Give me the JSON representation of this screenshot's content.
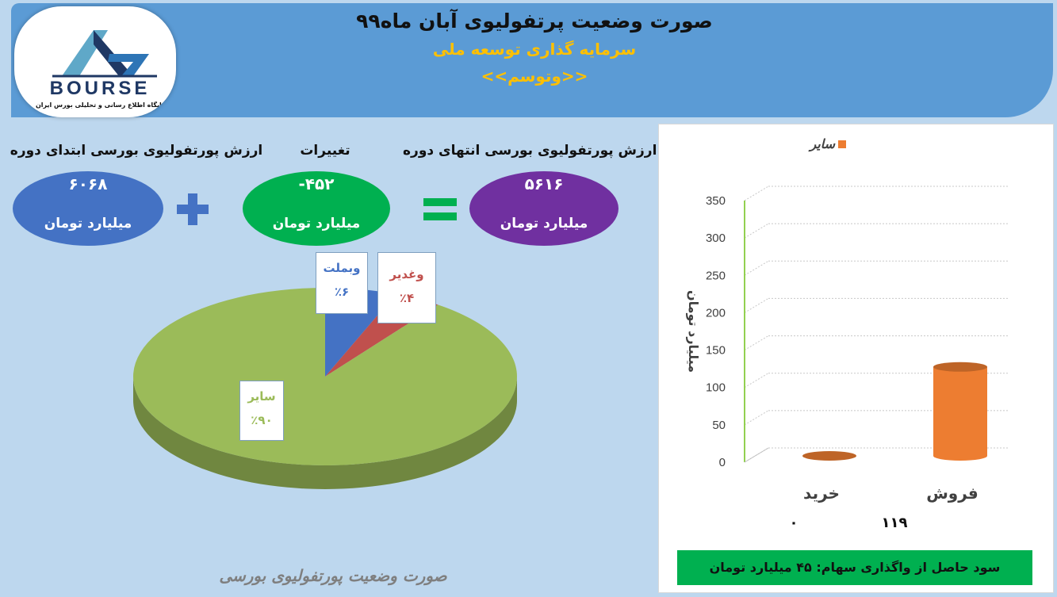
{
  "header": {
    "title": "صورت وضعیت پرتفولیوی آبان ماه۹۹",
    "subtitle": "سرمایه گذاری توسعه ملی",
    "ticker": "<<وتوسم>>"
  },
  "logo": {
    "word": "BOURSE",
    "tagline": "پایگاه اطلاع رسانی و تحلیلی بورس ایران"
  },
  "summary": {
    "start_label": "ارزش پورتفولیوی بورسی ابتدای دوره",
    "start_value": "۶۰۶۸",
    "change_label": "تغییرات",
    "change_value": "-۴۵۲",
    "end_label": "ارزش پورتفولیوی بورسی انتهای دوره",
    "end_value": "۵۶۱۶",
    "unit": "میلیارد تومان",
    "colors": {
      "start": "#4472c4",
      "change": "#00b050",
      "end": "#7030a0",
      "operator": "#4472c4",
      "equals": "#00b050"
    }
  },
  "pie": {
    "slices": [
      {
        "name": "وبملت",
        "percent_label": "٪۶",
        "value": 6,
        "color": "#4472c4"
      },
      {
        "name": "وغدیر",
        "percent_label": "٪۴",
        "value": 4,
        "color": "#c0504d"
      },
      {
        "name": "سایر",
        "percent_label": "٪۹۰",
        "value": 90,
        "color": "#9bbb59"
      }
    ],
    "caption": "صورت وضعیت پورتفولیوی بورسی"
  },
  "chart_data": {
    "type": "bar",
    "categories": [
      "خرید",
      "فروش"
    ],
    "series": [
      {
        "name": "سایر",
        "values": [
          0,
          119
        ],
        "color": "#ed7d31"
      }
    ],
    "value_labels": [
      "۰",
      "۱۱۹"
    ],
    "ylabel": "میلیارد تومان",
    "ylim": [
      0,
      350
    ],
    "yticks": [
      "0",
      "50",
      "100",
      "150",
      "200",
      "250",
      "300",
      "350"
    ],
    "legend_position": "top"
  },
  "profit_note": "سود حاصل از واگذاری سهام: ۴۵ میلیارد تومان"
}
